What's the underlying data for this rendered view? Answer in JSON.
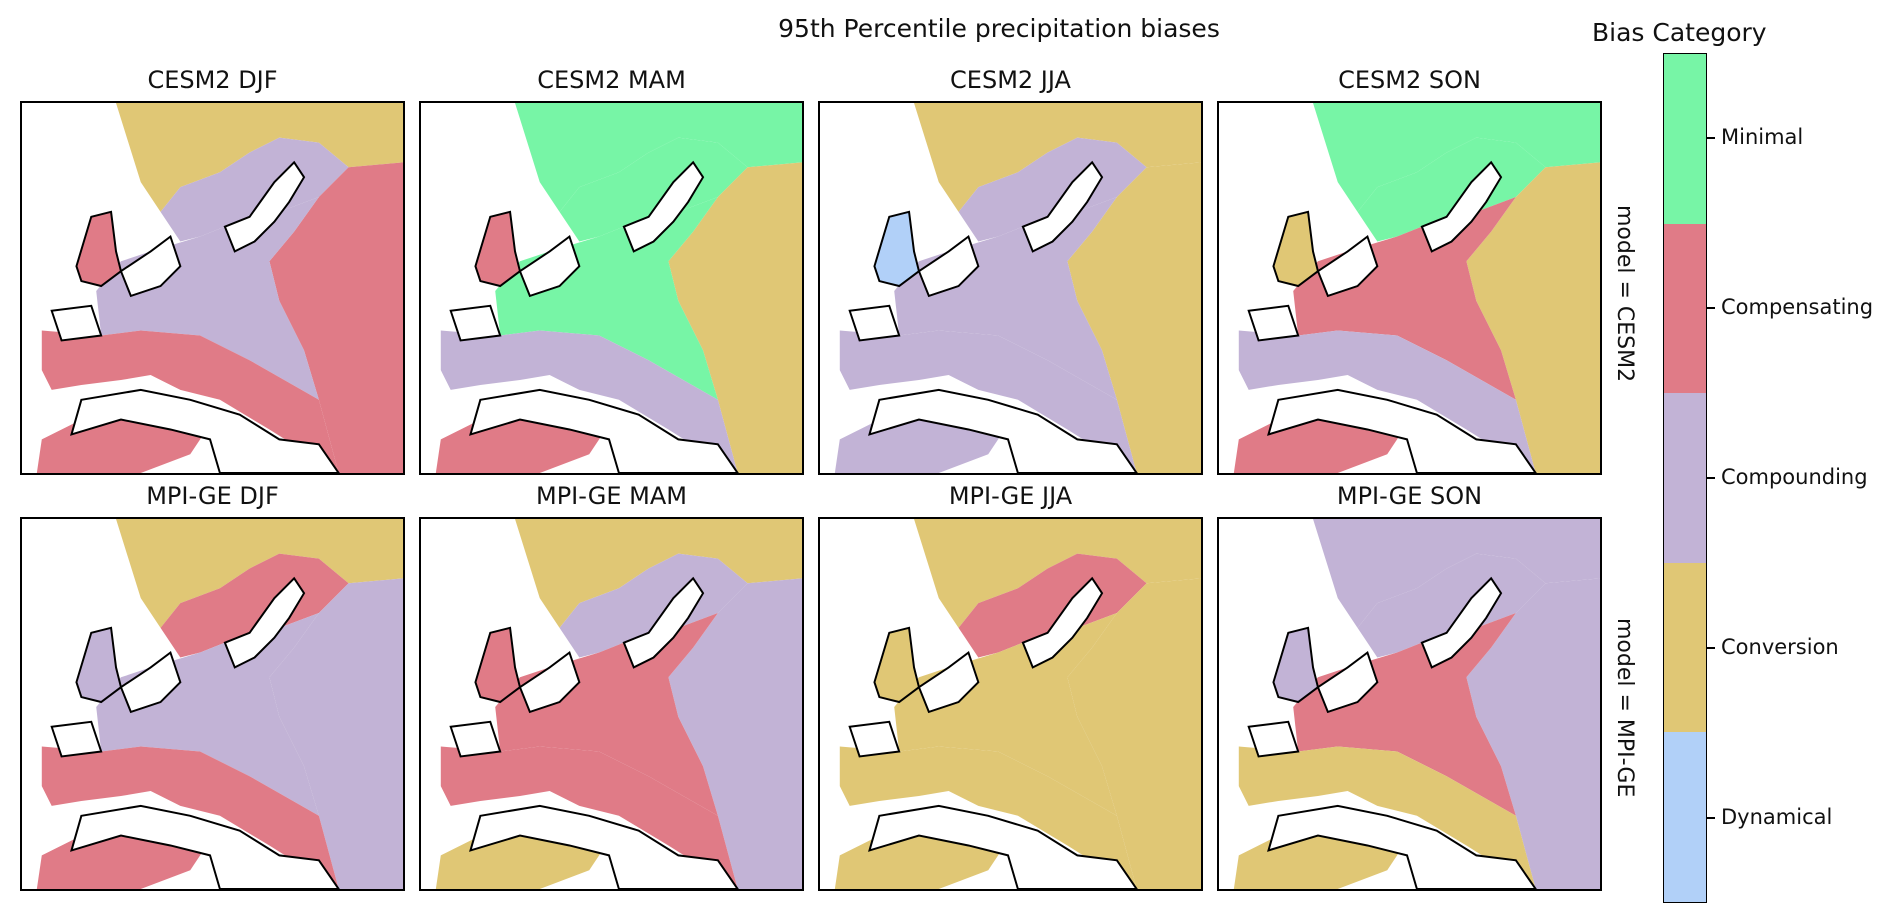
{
  "title": "95th Percentile precipitation biases",
  "legend": {
    "title": "Bias Category",
    "categories": [
      {
        "label": "Minimal",
        "color": "#77f5a6"
      },
      {
        "label": "Compensating",
        "color": "#e07b87"
      },
      {
        "label": "Compounding",
        "color": "#c2b3d6"
      },
      {
        "label": "Conversion",
        "color": "#e0c775"
      },
      {
        "label": "Dynamical",
        "color": "#b1d0f8"
      }
    ]
  },
  "row_labels": [
    "model = CESM2",
    "model = MPI-GE"
  ],
  "panels": [
    {
      "title": "CESM2 DJF",
      "north": "Conversion",
      "scand": "Compounding",
      "east": "Compensating",
      "central": "Compounding",
      "south": "Compensating",
      "africa": "Compensating",
      "britain": "Compensating"
    },
    {
      "title": "CESM2 MAM",
      "north": "Minimal",
      "scand": "Minimal",
      "east": "Conversion",
      "central": "Minimal",
      "south": "Compounding",
      "africa": "Compensating",
      "britain": "Compensating"
    },
    {
      "title": "CESM2 JJA",
      "north": "Conversion",
      "scand": "Compounding",
      "east": "Conversion",
      "central": "Compounding",
      "south": "Compounding",
      "africa": "Compounding",
      "britain": "Dynamical"
    },
    {
      "title": "CESM2 SON",
      "north": "Minimal",
      "scand": "Minimal",
      "east": "Conversion",
      "central": "Compensating",
      "south": "Compounding",
      "africa": "Compensating",
      "britain": "Conversion"
    },
    {
      "title": "MPI-GE DJF",
      "north": "Conversion",
      "scand": "Compensating",
      "east": "Compounding",
      "central": "Compounding",
      "south": "Compensating",
      "africa": "Compensating",
      "britain": "Compounding"
    },
    {
      "title": "MPI-GE MAM",
      "north": "Conversion",
      "scand": "Compounding",
      "east": "Compounding",
      "central": "Compensating",
      "south": "Compensating",
      "africa": "Conversion",
      "britain": "Compensating"
    },
    {
      "title": "MPI-GE JJA",
      "north": "Conversion",
      "scand": "Compensating",
      "east": "Conversion",
      "central": "Conversion",
      "south": "Conversion",
      "africa": "Conversion",
      "britain": "Conversion"
    },
    {
      "title": "MPI-GE SON",
      "north": "Compounding",
      "scand": "Compounding",
      "east": "Compounding",
      "central": "Compensating",
      "south": "Conversion",
      "africa": "Conversion",
      "britain": "Compounding"
    }
  ]
}
